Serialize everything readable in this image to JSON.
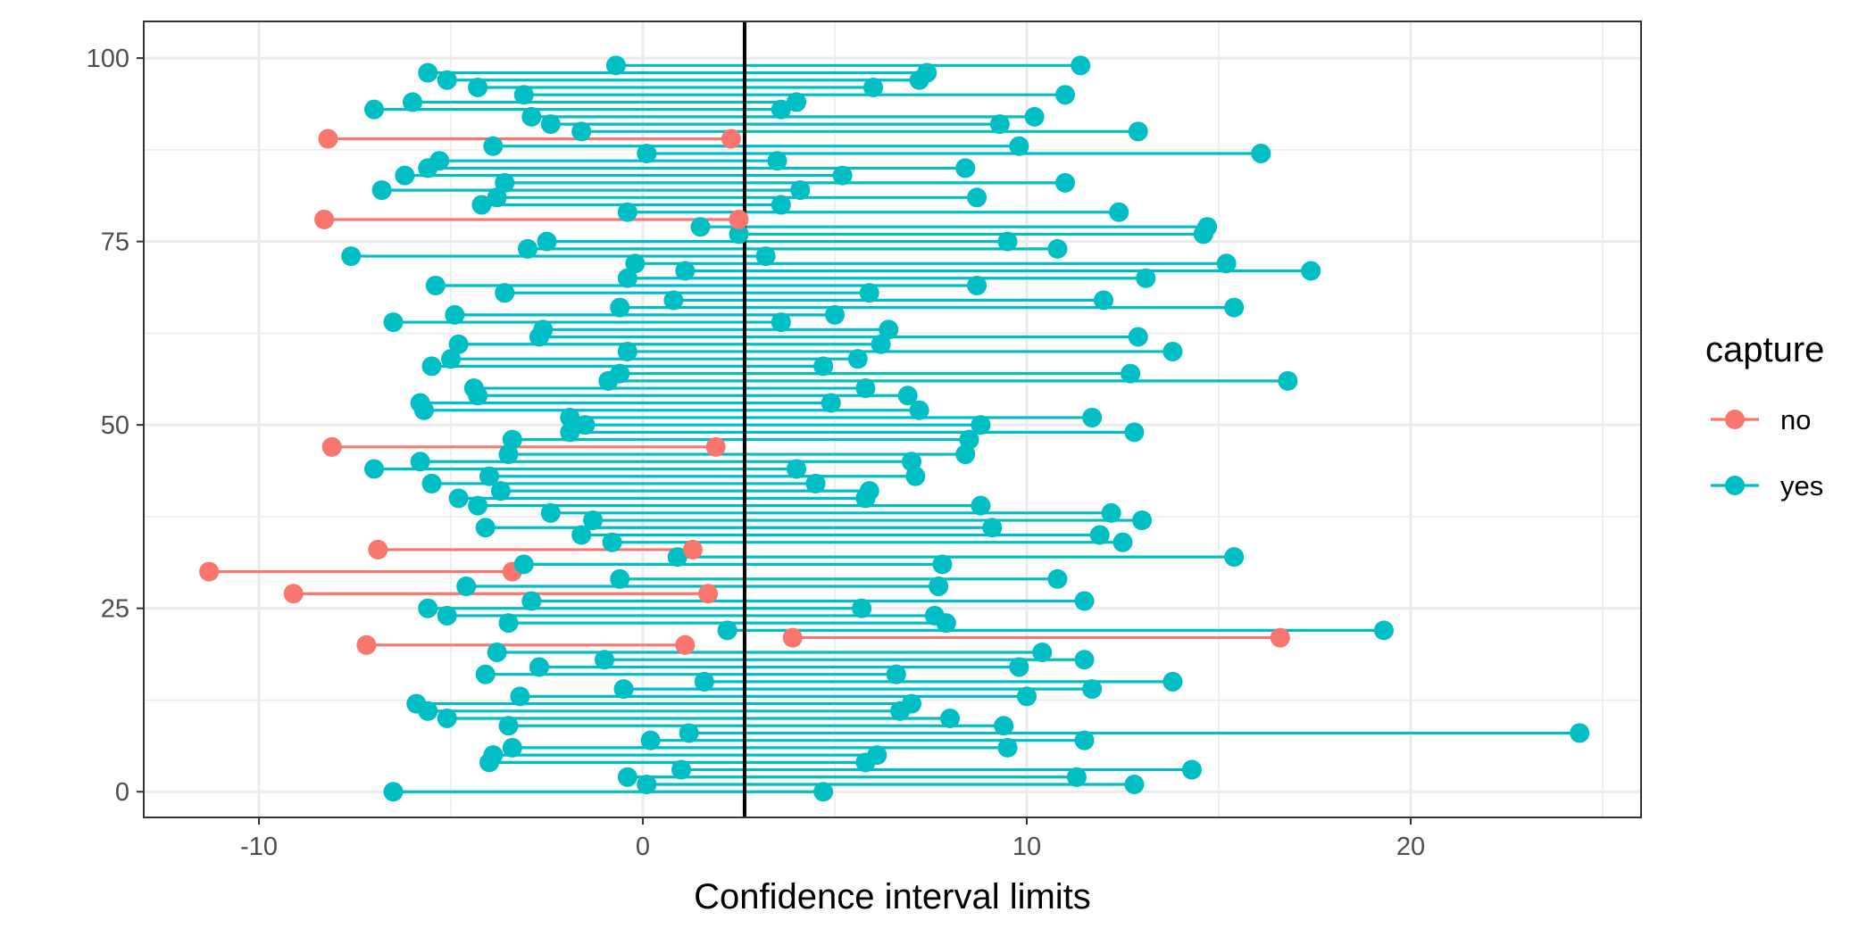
{
  "chart_data": {
    "type": "dot-interval",
    "xlabel": "Confidence interval limits",
    "ylabel": "",
    "xlim": [
      -13,
      26
    ],
    "ylim": [
      -3.5,
      105
    ],
    "x_ticks": [
      -10,
      0,
      10,
      20
    ],
    "y_ticks": [
      0,
      25,
      50,
      75,
      100
    ],
    "grid": true,
    "reference_line_x": 2.65,
    "legend": {
      "title": "capture",
      "placement": "right",
      "entries": [
        {
          "label": "no",
          "color": "#F8766D"
        },
        {
          "label": "yes",
          "color": "#00BFC4"
        }
      ]
    },
    "intervals": [
      {
        "id": 0,
        "lower": -6.5,
        "upper": 4.7,
        "capture": "yes"
      },
      {
        "id": 1,
        "lower": 0.1,
        "upper": 12.8,
        "capture": "yes"
      },
      {
        "id": 2,
        "lower": -0.4,
        "upper": 11.3,
        "capture": "yes"
      },
      {
        "id": 3,
        "lower": 1.0,
        "upper": 14.3,
        "capture": "yes"
      },
      {
        "id": 4,
        "lower": -4.0,
        "upper": 5.8,
        "capture": "yes"
      },
      {
        "id": 5,
        "lower": -3.9,
        "upper": 6.1,
        "capture": "yes"
      },
      {
        "id": 6,
        "lower": -3.4,
        "upper": 9.5,
        "capture": "yes"
      },
      {
        "id": 7,
        "lower": 0.2,
        "upper": 11.5,
        "capture": "yes"
      },
      {
        "id": 8,
        "lower": 1.2,
        "upper": 24.4,
        "capture": "yes"
      },
      {
        "id": 9,
        "lower": -3.5,
        "upper": 9.4,
        "capture": "yes"
      },
      {
        "id": 10,
        "lower": -5.1,
        "upper": 8.0,
        "capture": "yes"
      },
      {
        "id": 11,
        "lower": -5.6,
        "upper": 6.7,
        "capture": "yes"
      },
      {
        "id": 12,
        "lower": -5.9,
        "upper": 7.0,
        "capture": "yes"
      },
      {
        "id": 13,
        "lower": -3.2,
        "upper": 10.0,
        "capture": "yes"
      },
      {
        "id": 14,
        "lower": -0.5,
        "upper": 11.7,
        "capture": "yes"
      },
      {
        "id": 15,
        "lower": 1.6,
        "upper": 13.8,
        "capture": "yes"
      },
      {
        "id": 16,
        "lower": -4.1,
        "upper": 6.6,
        "capture": "yes"
      },
      {
        "id": 17,
        "lower": -2.7,
        "upper": 9.8,
        "capture": "yes"
      },
      {
        "id": 18,
        "lower": -1.0,
        "upper": 11.5,
        "capture": "yes"
      },
      {
        "id": 19,
        "lower": -3.8,
        "upper": 10.4,
        "capture": "yes"
      },
      {
        "id": 20,
        "lower": -7.2,
        "upper": 1.1,
        "capture": "no"
      },
      {
        "id": 21,
        "lower": 3.9,
        "upper": 16.6,
        "capture": "no"
      },
      {
        "id": 22,
        "lower": 2.2,
        "upper": 19.3,
        "capture": "yes"
      },
      {
        "id": 23,
        "lower": -3.5,
        "upper": 7.9,
        "capture": "yes"
      },
      {
        "id": 24,
        "lower": -5.1,
        "upper": 7.6,
        "capture": "yes"
      },
      {
        "id": 25,
        "lower": -5.6,
        "upper": 5.7,
        "capture": "yes"
      },
      {
        "id": 26,
        "lower": -2.9,
        "upper": 11.5,
        "capture": "yes"
      },
      {
        "id": 27,
        "lower": -9.1,
        "upper": 1.7,
        "capture": "no"
      },
      {
        "id": 28,
        "lower": -4.6,
        "upper": 7.7,
        "capture": "yes"
      },
      {
        "id": 29,
        "lower": -0.6,
        "upper": 10.8,
        "capture": "yes"
      },
      {
        "id": 30,
        "lower": -11.3,
        "upper": -3.4,
        "capture": "no"
      },
      {
        "id": 31,
        "lower": -3.1,
        "upper": 7.8,
        "capture": "yes"
      },
      {
        "id": 32,
        "lower": 0.9,
        "upper": 15.4,
        "capture": "yes"
      },
      {
        "id": 33,
        "lower": -6.9,
        "upper": 1.3,
        "capture": "no"
      },
      {
        "id": 34,
        "lower": -0.8,
        "upper": 12.5,
        "capture": "yes"
      },
      {
        "id": 35,
        "lower": -1.6,
        "upper": 11.9,
        "capture": "yes"
      },
      {
        "id": 36,
        "lower": -4.1,
        "upper": 9.1,
        "capture": "yes"
      },
      {
        "id": 37,
        "lower": -1.3,
        "upper": 13.0,
        "capture": "yes"
      },
      {
        "id": 38,
        "lower": -2.4,
        "upper": 12.2,
        "capture": "yes"
      },
      {
        "id": 39,
        "lower": -4.3,
        "upper": 8.8,
        "capture": "yes"
      },
      {
        "id": 40,
        "lower": -4.8,
        "upper": 5.8,
        "capture": "yes"
      },
      {
        "id": 41,
        "lower": -3.7,
        "upper": 5.9,
        "capture": "yes"
      },
      {
        "id": 42,
        "lower": -5.5,
        "upper": 4.5,
        "capture": "yes"
      },
      {
        "id": 43,
        "lower": -4.0,
        "upper": 7.1,
        "capture": "yes"
      },
      {
        "id": 44,
        "lower": -7.0,
        "upper": 4.0,
        "capture": "yes"
      },
      {
        "id": 45,
        "lower": -5.8,
        "upper": 7.0,
        "capture": "yes"
      },
      {
        "id": 46,
        "lower": -3.5,
        "upper": 8.4,
        "capture": "yes"
      },
      {
        "id": 47,
        "lower": -8.1,
        "upper": 1.9,
        "capture": "no"
      },
      {
        "id": 48,
        "lower": -3.4,
        "upper": 8.5,
        "capture": "yes"
      },
      {
        "id": 49,
        "lower": -1.9,
        "upper": 12.8,
        "capture": "yes"
      },
      {
        "id": 50,
        "lower": -1.5,
        "upper": 8.8,
        "capture": "yes"
      },
      {
        "id": 51,
        "lower": -1.9,
        "upper": 11.7,
        "capture": "yes"
      },
      {
        "id": 52,
        "lower": -5.7,
        "upper": 7.2,
        "capture": "yes"
      },
      {
        "id": 53,
        "lower": -5.8,
        "upper": 4.9,
        "capture": "yes"
      },
      {
        "id": 54,
        "lower": -4.3,
        "upper": 6.9,
        "capture": "yes"
      },
      {
        "id": 55,
        "lower": -4.4,
        "upper": 5.8,
        "capture": "yes"
      },
      {
        "id": 56,
        "lower": -0.9,
        "upper": 16.8,
        "capture": "yes"
      },
      {
        "id": 57,
        "lower": -0.6,
        "upper": 12.7,
        "capture": "yes"
      },
      {
        "id": 58,
        "lower": -5.5,
        "upper": 4.7,
        "capture": "yes"
      },
      {
        "id": 59,
        "lower": -5.0,
        "upper": 5.6,
        "capture": "yes"
      },
      {
        "id": 60,
        "lower": -0.4,
        "upper": 13.8,
        "capture": "yes"
      },
      {
        "id": 61,
        "lower": -4.8,
        "upper": 6.2,
        "capture": "yes"
      },
      {
        "id": 62,
        "lower": -2.7,
        "upper": 12.9,
        "capture": "yes"
      },
      {
        "id": 63,
        "lower": -2.6,
        "upper": 6.4,
        "capture": "yes"
      },
      {
        "id": 64,
        "lower": -6.5,
        "upper": 3.6,
        "capture": "yes"
      },
      {
        "id": 65,
        "lower": -4.9,
        "upper": 5.0,
        "capture": "yes"
      },
      {
        "id": 66,
        "lower": -0.6,
        "upper": 15.4,
        "capture": "yes"
      },
      {
        "id": 67,
        "lower": 0.8,
        "upper": 12.0,
        "capture": "yes"
      },
      {
        "id": 68,
        "lower": -3.6,
        "upper": 5.9,
        "capture": "yes"
      },
      {
        "id": 69,
        "lower": -5.4,
        "upper": 8.7,
        "capture": "yes"
      },
      {
        "id": 70,
        "lower": -0.4,
        "upper": 13.1,
        "capture": "yes"
      },
      {
        "id": 71,
        "lower": 1.1,
        "upper": 17.4,
        "capture": "yes"
      },
      {
        "id": 72,
        "lower": -0.2,
        "upper": 15.2,
        "capture": "yes"
      },
      {
        "id": 73,
        "lower": -7.6,
        "upper": 3.2,
        "capture": "yes"
      },
      {
        "id": 74,
        "lower": -3.0,
        "upper": 10.8,
        "capture": "yes"
      },
      {
        "id": 75,
        "lower": -2.5,
        "upper": 9.5,
        "capture": "yes"
      },
      {
        "id": 76,
        "lower": 2.5,
        "upper": 14.6,
        "capture": "yes"
      },
      {
        "id": 77,
        "lower": 1.5,
        "upper": 14.7,
        "capture": "yes"
      },
      {
        "id": 78,
        "lower": -8.3,
        "upper": 2.5,
        "capture": "no"
      },
      {
        "id": 79,
        "lower": -0.4,
        "upper": 12.4,
        "capture": "yes"
      },
      {
        "id": 80,
        "lower": -4.2,
        "upper": 3.6,
        "capture": "yes"
      },
      {
        "id": 81,
        "lower": -3.8,
        "upper": 8.7,
        "capture": "yes"
      },
      {
        "id": 82,
        "lower": -6.8,
        "upper": 4.1,
        "capture": "yes"
      },
      {
        "id": 83,
        "lower": -3.6,
        "upper": 11.0,
        "capture": "yes"
      },
      {
        "id": 84,
        "lower": -6.2,
        "upper": 5.2,
        "capture": "yes"
      },
      {
        "id": 85,
        "lower": -5.6,
        "upper": 8.4,
        "capture": "yes"
      },
      {
        "id": 86,
        "lower": -5.3,
        "upper": 3.5,
        "capture": "yes"
      },
      {
        "id": 87,
        "lower": 0.1,
        "upper": 16.1,
        "capture": "yes"
      },
      {
        "id": 88,
        "lower": -3.9,
        "upper": 9.8,
        "capture": "yes"
      },
      {
        "id": 89,
        "lower": -8.2,
        "upper": 2.3,
        "capture": "no"
      },
      {
        "id": 90,
        "lower": -1.6,
        "upper": 12.9,
        "capture": "yes"
      },
      {
        "id": 91,
        "lower": -2.4,
        "upper": 9.3,
        "capture": "yes"
      },
      {
        "id": 92,
        "lower": -2.9,
        "upper": 10.2,
        "capture": "yes"
      },
      {
        "id": 93,
        "lower": -7.0,
        "upper": 3.6,
        "capture": "yes"
      },
      {
        "id": 94,
        "lower": -6.0,
        "upper": 4.0,
        "capture": "yes"
      },
      {
        "id": 95,
        "lower": -3.1,
        "upper": 11.0,
        "capture": "yes"
      },
      {
        "id": 96,
        "lower": -4.3,
        "upper": 6.0,
        "capture": "yes"
      },
      {
        "id": 97,
        "lower": -5.1,
        "upper": 7.2,
        "capture": "yes"
      },
      {
        "id": 98,
        "lower": -5.6,
        "upper": 7.4,
        "capture": "yes"
      },
      {
        "id": 99,
        "lower": -0.7,
        "upper": 11.4,
        "capture": "yes"
      }
    ]
  }
}
